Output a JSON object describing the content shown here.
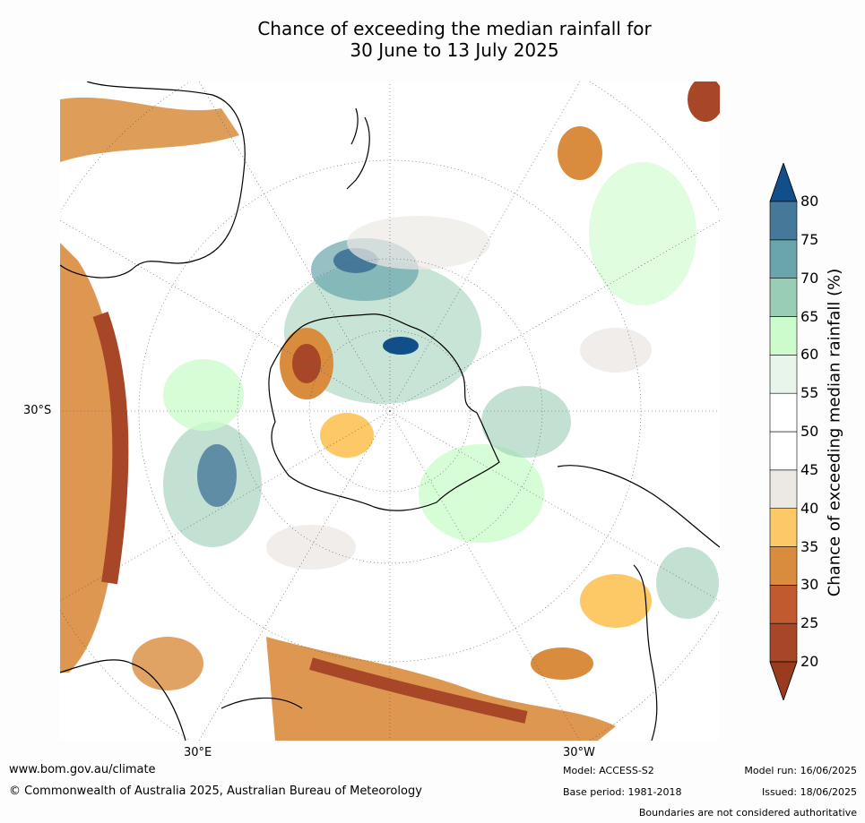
{
  "title": {
    "line1": "Chance of exceeding the median rainfall for",
    "line2": "30 June to 13 July 2025"
  },
  "map": {
    "projection": "south polar stereographic",
    "lat_label": "30°S",
    "lon_labels": {
      "east": "30°E",
      "west": "30°W"
    },
    "contour_levels": [
      20,
      25,
      30,
      35,
      40,
      45,
      50,
      55,
      60,
      65,
      70,
      75,
      80
    ],
    "features": [
      "Antarctica",
      "Australia",
      "New Zealand",
      "South America",
      "Africa",
      "Madagascar"
    ]
  },
  "colorbar": {
    "title": "Chance of exceeding median rainfall (%)",
    "ticks": [
      "80",
      "75",
      "70",
      "65",
      "60",
      "55",
      "50",
      "45",
      "40",
      "35",
      "30",
      "25",
      "20"
    ],
    "colors_low_to_high": [
      "#9a3a1e",
      "#a84727",
      "#c15a2e",
      "#d98c3d",
      "#fdc966",
      "#ece9e5",
      "#ffffff",
      "#ffffff",
      "#e8f5ea",
      "#ccfccc",
      "#99cdb5",
      "#6aa5ab",
      "#46789a",
      "#114f8a"
    ]
  },
  "footer": {
    "url": "www.bom.gov.au/climate",
    "copyright": "© Commonwealth of Australia 2025, Australian Bureau of Meteorology",
    "model": "Model: ACCESS-S2",
    "base_period": "Base period: 1981-2018",
    "model_run": "Model run: 16/06/2025",
    "issued": "Issued: 18/06/2025",
    "disclaimer": "Boundaries are not considered authoritative"
  }
}
